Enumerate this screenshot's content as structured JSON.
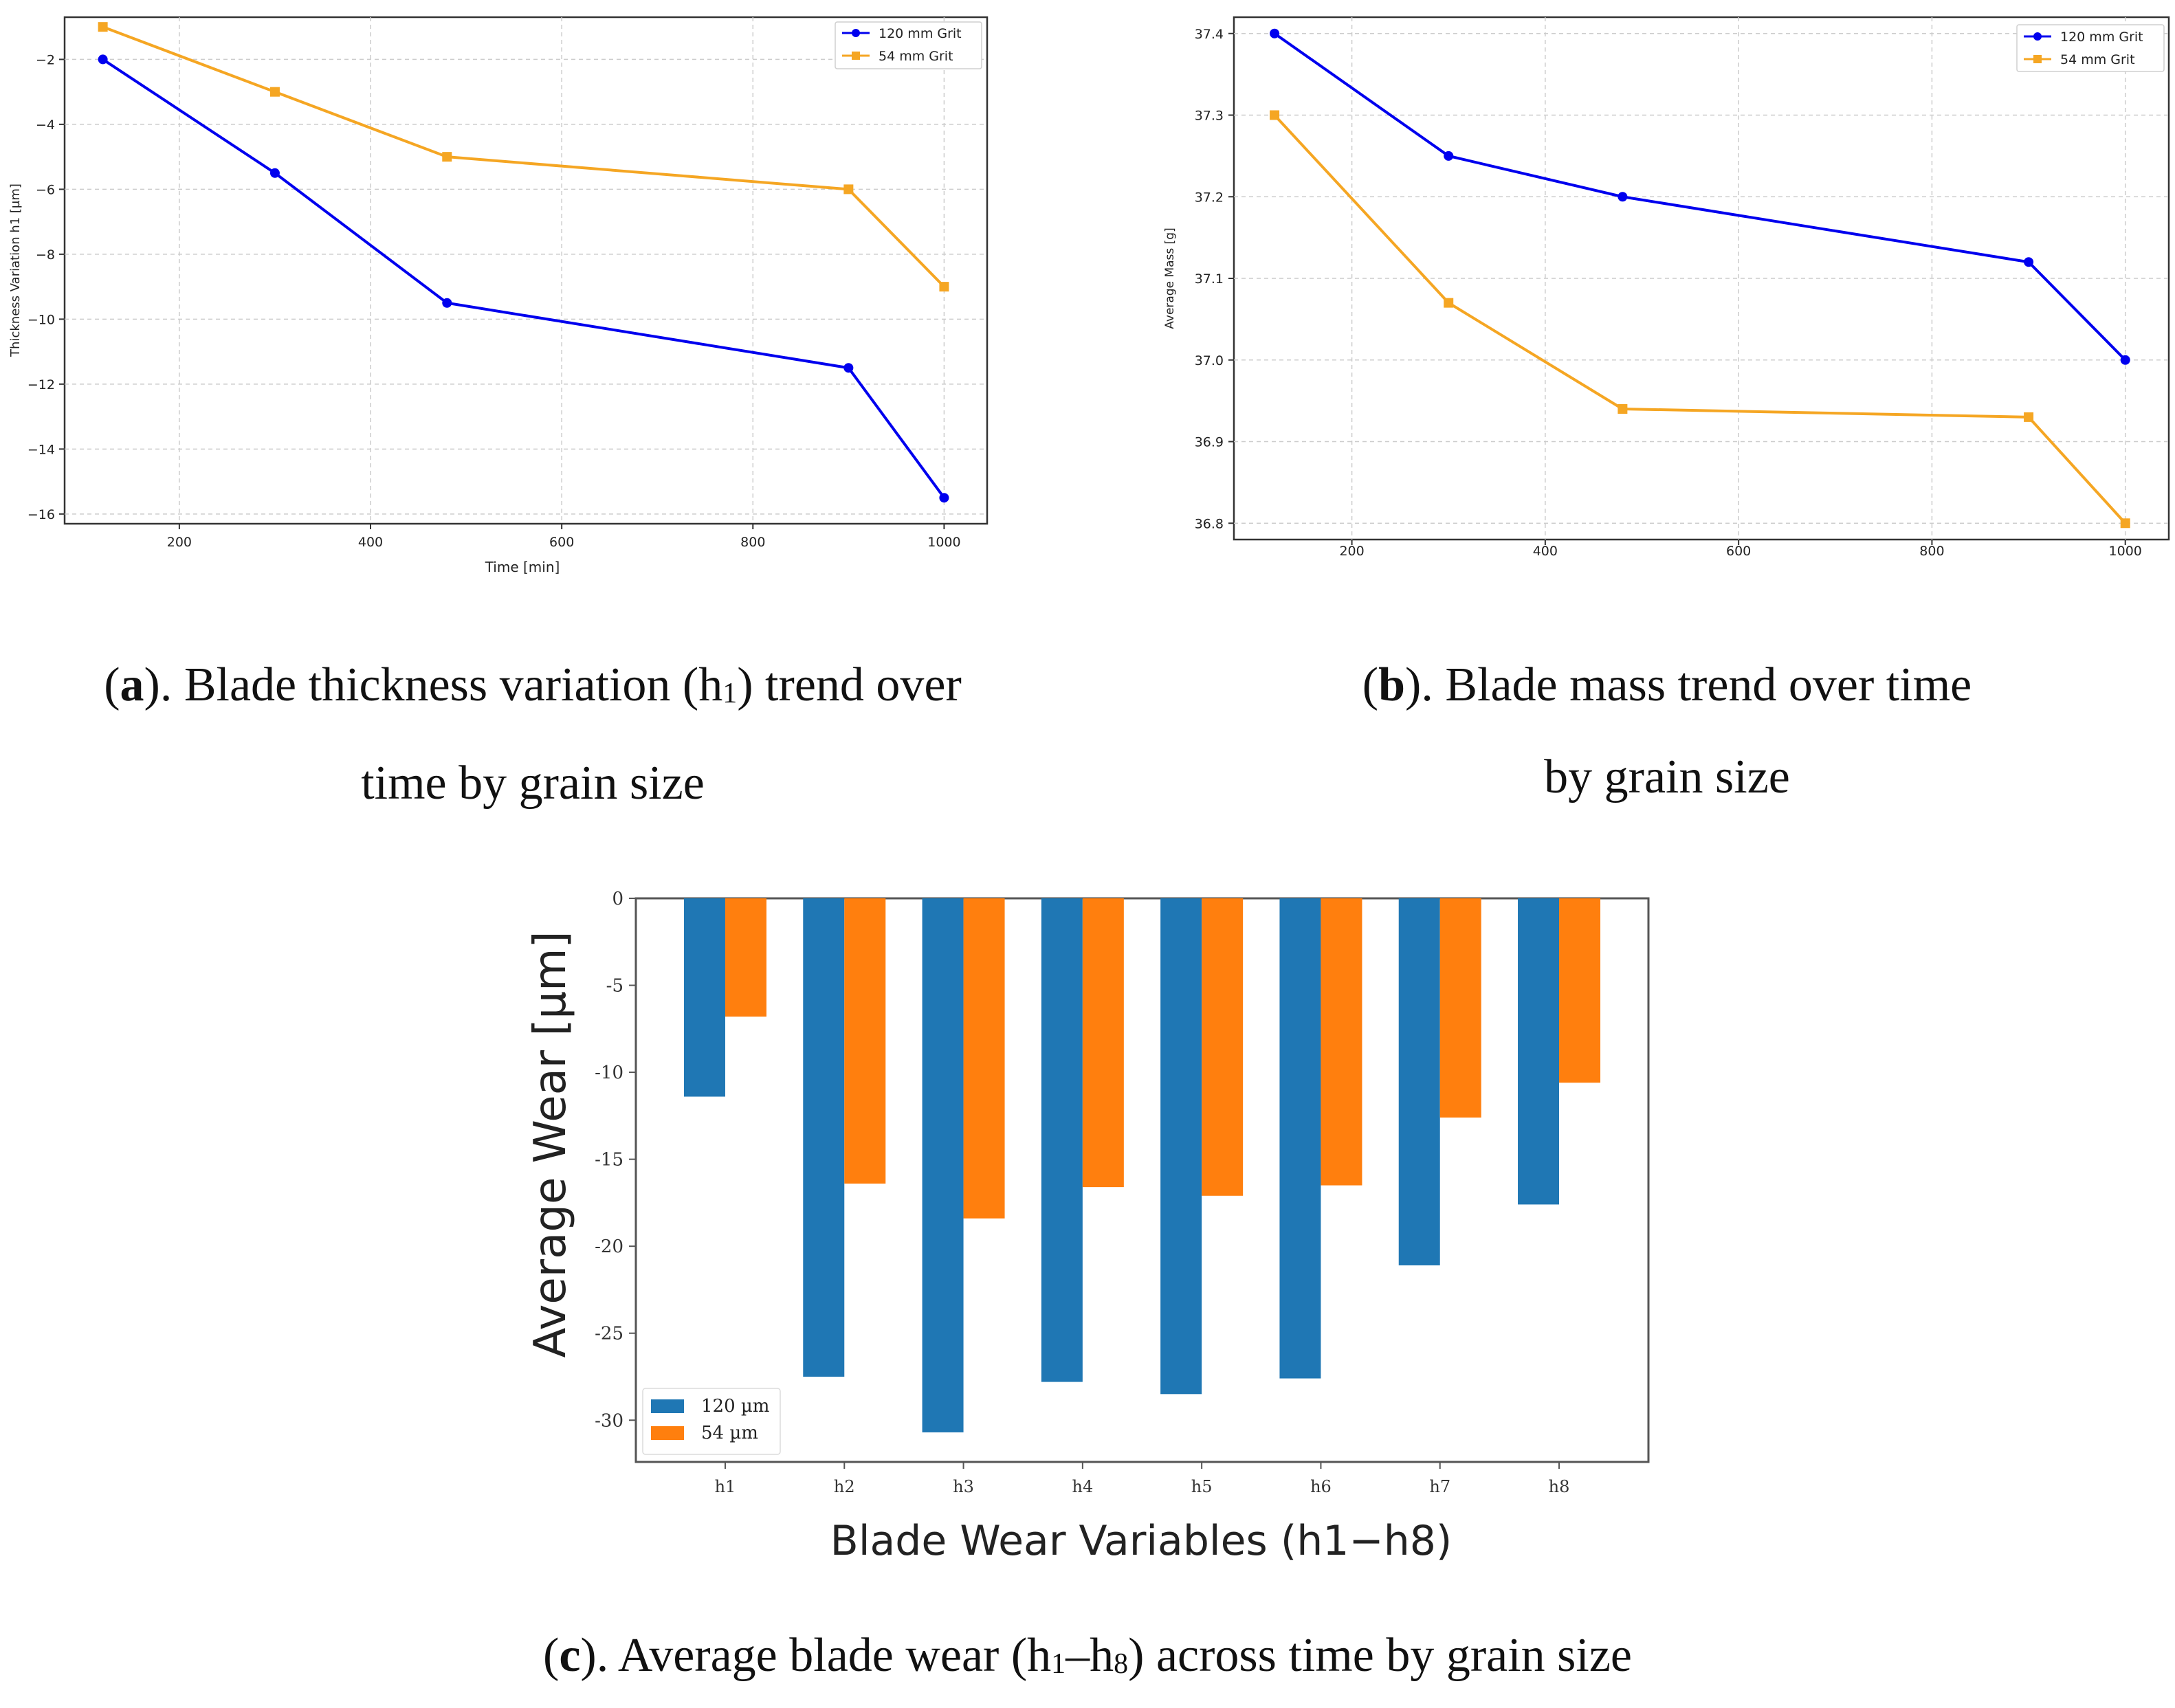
{
  "chart_data": [
    {
      "id": "a",
      "type": "line",
      "title": "",
      "xlabel": "Time [min]",
      "ylabel": "Thickness Variation h1 [µm]",
      "xlim": [
        80,
        1045
      ],
      "ylim": [
        -16.3,
        -0.7
      ],
      "xticks": [
        200,
        400,
        600,
        800,
        1000
      ],
      "xtick_labels": [
        "200",
        "400",
        "600",
        "800",
        "1000"
      ],
      "yticks": [
        -2,
        -4,
        -6,
        -8,
        -10,
        -12,
        -14,
        -16
      ],
      "ytick_labels": [
        "−2",
        "−4",
        "−6",
        "−8",
        "−10",
        "−12",
        "−14",
        "−16"
      ],
      "grid": true,
      "legend_position": "top-right",
      "series": [
        {
          "name": "120 mm Grit",
          "color": "#0000ee",
          "marker": "circle",
          "x": [
            120,
            300,
            480,
            900,
            1000
          ],
          "y": [
            -2,
            -5.5,
            -9.5,
            -11.5,
            -15.5
          ]
        },
        {
          "name": "54 mm Grit",
          "color": "#f5a623",
          "marker": "square",
          "x": [
            120,
            300,
            480,
            900,
            1000
          ],
          "y": [
            -1,
            -3,
            -5,
            -6,
            -9
          ]
        }
      ]
    },
    {
      "id": "b",
      "type": "line",
      "title": "",
      "xlabel": "",
      "ylabel": "Average Mass [g]",
      "xlim": [
        78,
        1045
      ],
      "ylim": [
        36.78,
        37.42
      ],
      "xticks": [
        200,
        400,
        600,
        800,
        1000
      ],
      "xtick_labels": [
        "200",
        "400",
        "600",
        "800",
        "1000"
      ],
      "yticks": [
        37.4,
        37.3,
        37.2,
        37.1,
        37.0,
        36.9,
        36.8
      ],
      "ytick_labels": [
        "37.4",
        "37.3",
        "37.2",
        "37.1",
        "37.0",
        "36.9",
        "36.8"
      ],
      "grid": true,
      "legend_position": "top-right",
      "series": [
        {
          "name": "120 mm Grit",
          "color": "#0000ee",
          "marker": "circle",
          "x": [
            120,
            300,
            480,
            900,
            1000
          ],
          "y": [
            37.4,
            37.25,
            37.2,
            37.12,
            37.0
          ]
        },
        {
          "name": "54 mm Grit",
          "color": "#f5a623",
          "marker": "square",
          "x": [
            120,
            300,
            480,
            900,
            1000
          ],
          "y": [
            37.3,
            37.07,
            36.94,
            36.93,
            36.8
          ]
        }
      ]
    },
    {
      "id": "c",
      "type": "bar",
      "title": "",
      "xlabel": "Blade Wear Variables (h1−h8)",
      "ylabel": "Average Wear [µm]",
      "categories": [
        "h1",
        "h2",
        "h3",
        "h4",
        "h5",
        "h6",
        "h7",
        "h8"
      ],
      "ylim": [
        -32.4,
        0
      ],
      "yticks": [
        0,
        -5,
        -10,
        -15,
        -20,
        -25,
        -30
      ],
      "ytick_labels": [
        "0",
        "-5",
        "-10",
        "-15",
        "-20",
        "-25",
        "-30"
      ],
      "grid": false,
      "legend_position": "bottom-left",
      "series": [
        {
          "name": "120 µm",
          "color": "#1f77b4",
          "values": [
            -11.4,
            -27.5,
            -30.7,
            -27.8,
            -28.5,
            -27.6,
            -21.1,
            -17.6
          ]
        },
        {
          "name": "54 µm",
          "color": "#ff7f0e",
          "values": [
            -6.8,
            -16.4,
            -18.4,
            -16.6,
            -17.1,
            -16.5,
            -12.6,
            -10.6
          ]
        }
      ]
    }
  ],
  "captions": {
    "a": {
      "letter": "a",
      "prefix": "(",
      "text_1": "). Blade thickness variation (h",
      "sub": "1",
      "text_2": ") trend over",
      "line2": "time by grain size"
    },
    "b": {
      "letter": "b",
      "prefix": "(",
      "text_1": "). Blade mass trend over time",
      "line2": "by grain size"
    },
    "c": {
      "letter": "c",
      "prefix": "(",
      "text_1": "). Average blade wear (h",
      "sub1": "1",
      "dash": "–h",
      "sub2": "8",
      "text_2": ") across time by grain size"
    }
  }
}
